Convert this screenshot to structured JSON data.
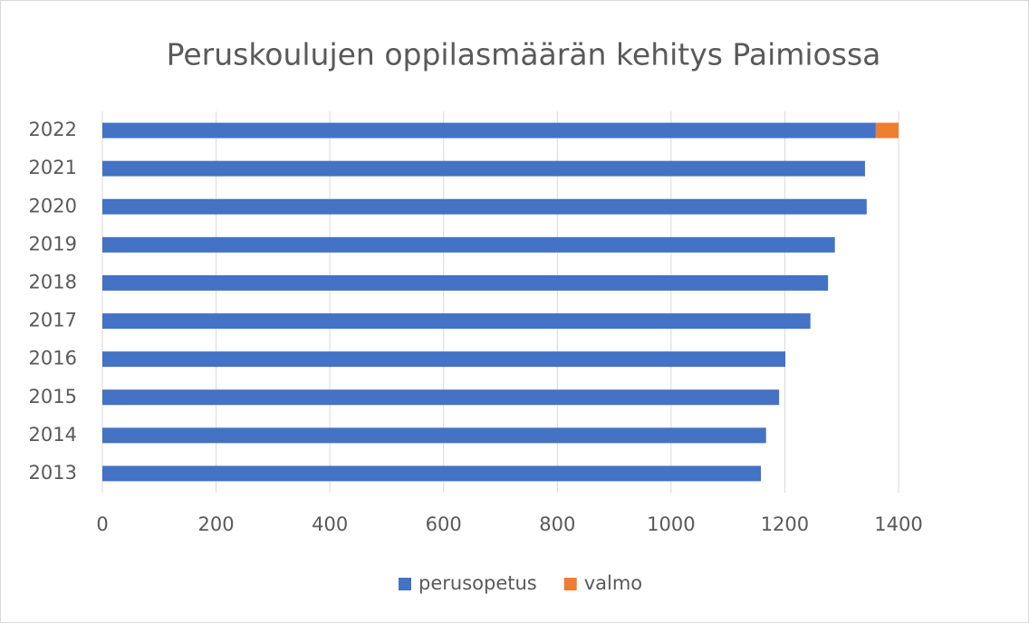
{
  "chart_data": {
    "type": "bar",
    "orientation": "horizontal",
    "stacked": true,
    "title": "Peruskoulujen oppilasmäärän kehitys Paimiossa",
    "categories": [
      "2013",
      "2014",
      "2015",
      "2016",
      "2017",
      "2018",
      "2019",
      "2020",
      "2021",
      "2022"
    ],
    "series": [
      {
        "name": "perusopetus",
        "color": "#4472c4",
        "values": [
          1158,
          1167,
          1190,
          1201,
          1245,
          1276,
          1288,
          1344,
          1341,
          1360
        ]
      },
      {
        "name": "valmo",
        "color": "#ed7d31",
        "values": [
          null,
          null,
          null,
          null,
          null,
          null,
          null,
          null,
          null,
          40
        ]
      }
    ],
    "xlim": [
      0,
      1400
    ],
    "xticks": [
      0,
      200,
      400,
      600,
      800,
      1000,
      1200,
      1400
    ],
    "grid": true,
    "legend": "bottom"
  }
}
